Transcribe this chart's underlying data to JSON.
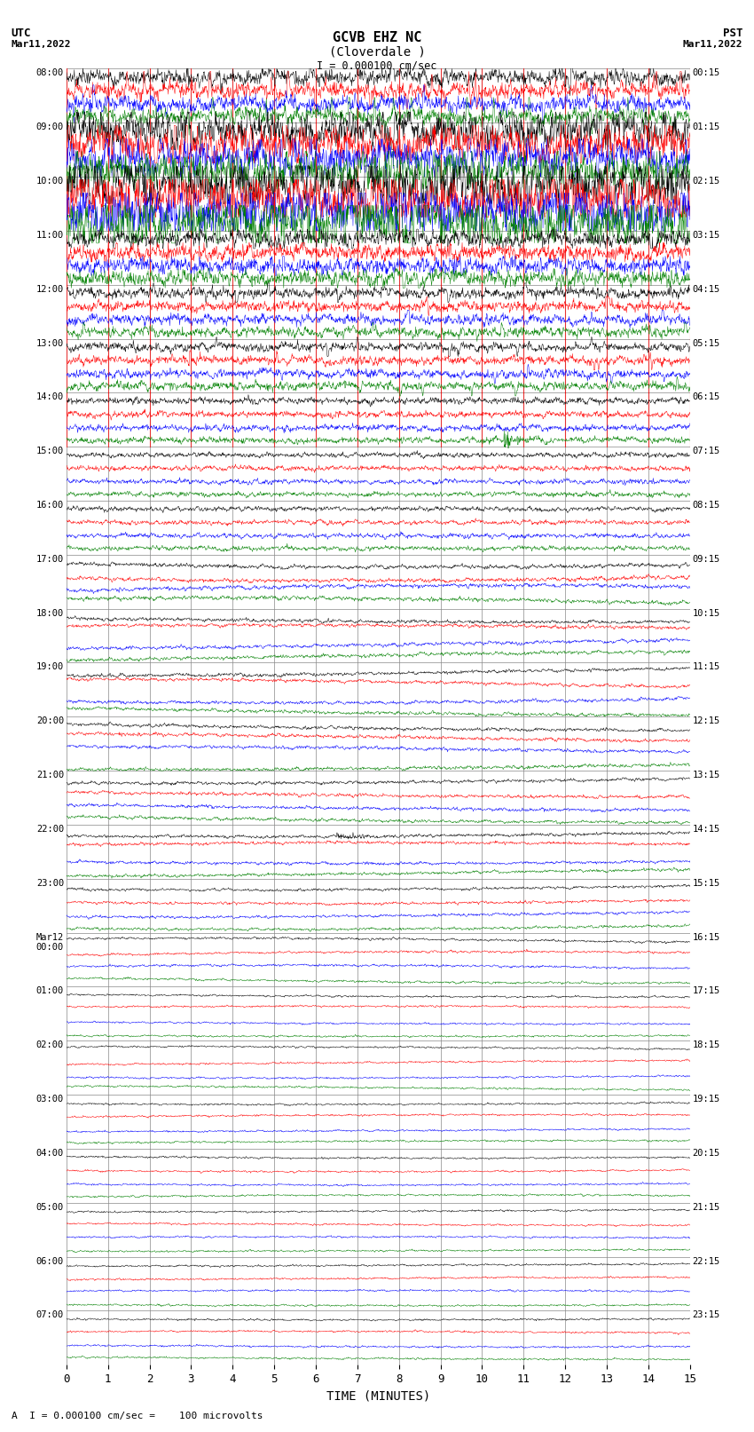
{
  "title_line1": "GCVB EHZ NC",
  "title_line2": "(Cloverdale )",
  "title_scale": "I = 0.000100 cm/sec",
  "label_utc": "UTC",
  "label_pst": "PST",
  "label_date_left": "Mar11,2022",
  "label_date_right": "Mar11,2022",
  "xlabel": "TIME (MINUTES)",
  "footer": "A  I = 0.000100 cm/sec =    100 microvolts",
  "utc_times": [
    "08:00",
    "09:00",
    "10:00",
    "11:00",
    "12:00",
    "13:00",
    "14:00",
    "15:00",
    "16:00",
    "17:00",
    "18:00",
    "19:00",
    "20:00",
    "21:00",
    "22:00",
    "23:00",
    "Mar12\n00:00",
    "01:00",
    "02:00",
    "03:00",
    "04:00",
    "05:00",
    "06:00",
    "07:00"
  ],
  "pst_times": [
    "00:15",
    "01:15",
    "02:15",
    "03:15",
    "04:15",
    "05:15",
    "06:15",
    "07:15",
    "08:15",
    "09:15",
    "10:15",
    "11:15",
    "12:15",
    "13:15",
    "14:15",
    "15:15",
    "16:15",
    "17:15",
    "18:15",
    "19:15",
    "20:15",
    "21:15",
    "22:15",
    "23:15"
  ],
  "n_rows": 24,
  "n_points": 1800,
  "bg_color": "#ffffff",
  "grid_color": "#888888",
  "colors": [
    "black",
    "red",
    "blue",
    "green"
  ],
  "figsize": [
    8.5,
    16.13
  ]
}
